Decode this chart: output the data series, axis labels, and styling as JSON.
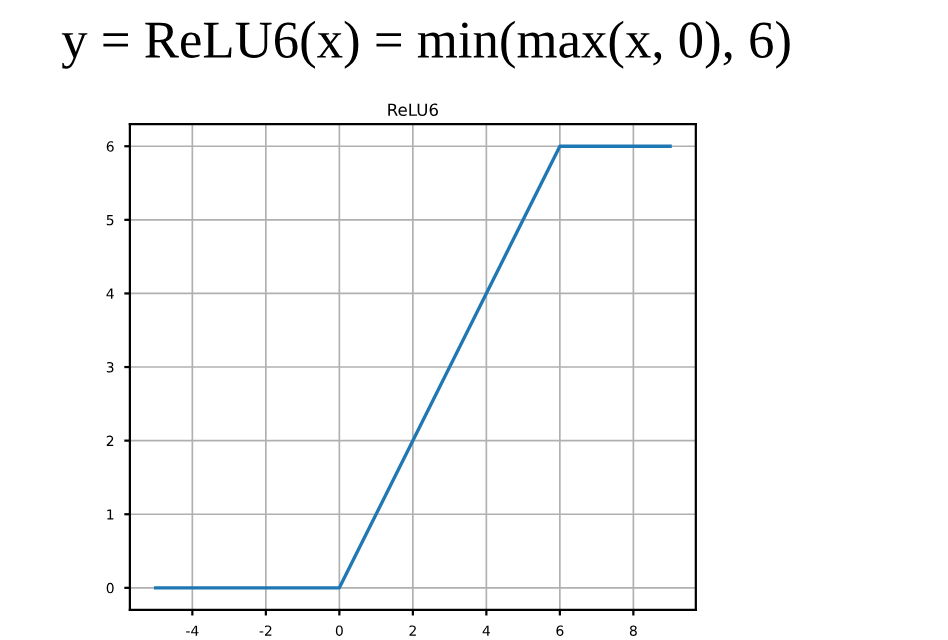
{
  "chart_data": {
    "type": "line",
    "title": "y = ReLU6(x) = min(max(x, 0), 6)",
    "subtitle": "ReLU6",
    "x": [
      -5,
      0,
      6,
      9
    ],
    "series": [
      {
        "color": "#1f77b4",
        "values": [
          0,
          0,
          6,
          6
        ]
      }
    ],
    "xlim": [
      -5.7,
      9.7
    ],
    "ylim": [
      -0.3,
      6.3
    ],
    "xticks": [
      -4,
      -2,
      0,
      2,
      4,
      6,
      8
    ],
    "yticks": [
      0,
      1,
      2,
      3,
      4,
      5,
      6
    ],
    "grid": true,
    "marker": "none",
    "line_style": "solid"
  }
}
